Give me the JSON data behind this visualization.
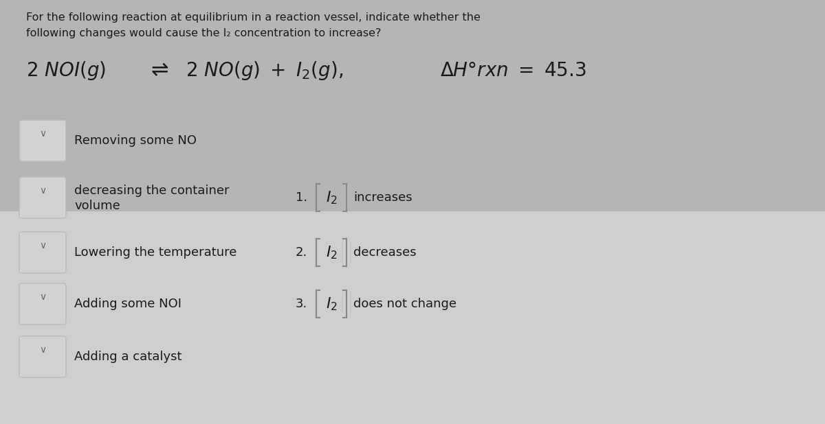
{
  "background_top": "#b8b8b8",
  "background_bottom": "#d0d0d0",
  "background_color": "#c0c0c0",
  "title_text_line1": "For the following reaction at equilibrium in a reaction vessel, indicate whether the",
  "title_text_line2": "following changes would cause the I₂ concentration to increase?",
  "items": [
    "Removing some NO",
    "decreasing the container\nvolume",
    "Lowering the temperature",
    "Adding some NOI",
    "Adding a catalyst"
  ],
  "answers": [
    {
      "num": "1.",
      "label": "increases"
    },
    {
      "num": "2.",
      "label": "decreases"
    },
    {
      "num": "3.",
      "label": "does not change"
    }
  ],
  "box_edge_color": "#aaaaaa",
  "box_fill_color": "#d8d8d8",
  "text_color": "#1a1a1a",
  "title_fontsize": 11.5,
  "reaction_fontsize": 20,
  "item_fontsize": 13,
  "answer_fontsize": 13,
  "bracket_fontsize": 16
}
